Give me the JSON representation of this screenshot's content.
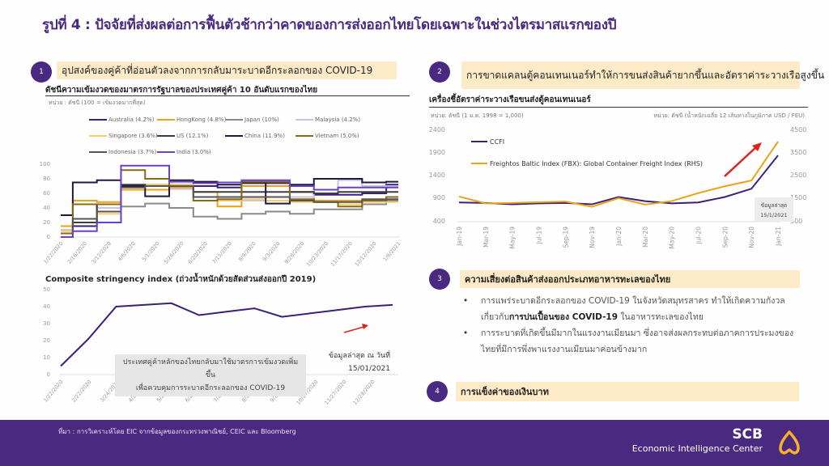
{
  "title": "รูปที่ 4 : ปัจจัยที่ส่งผลต่อการฟื้นตัวช้ากว่าคาดของการส่งออกไทยโดยเฉพาะในช่วงไตรมาสแรกของปี",
  "sections": [
    {
      "number": "1",
      "heading": "อุปสงค์ของคู่ค้าที่อ่อนตัวลงจากการกลับมาระบาดอีกระลอกของ   COVID-19"
    },
    {
      "number": "2",
      "heading": "การขาดแคลนตู้คอนเทนเนอร์ทำให้การขนส่งสินค้ายากขึ้นและอัตราค่าระวางเรือสูงขึ้น"
    },
    {
      "number": "3",
      "heading": "ความเสี่ยงต่อสินค้าส่งออกประเภทอาหารทะเลของไทย"
    },
    {
      "number": "4",
      "heading": "การแข็งค่าของเงินบาท"
    }
  ],
  "chart1": {
    "subtitle": "ดัชนีความเข้มงวดของมาตรการรัฐบาลของประเทศคู่ค้า 10 อันดับแรกของไทย",
    "unit": "หน่วย : ดัชนี (100 = เข้มงวดมากที่สุด)"
  },
  "chart2": {
    "subtitle": "Composite stringency index (ถ่วงน้ำหนักด้วยสัดส่วนส่งออกปี 2019)",
    "callout_line1": "ประเทศคู่ค้าหลักของไทยกลับมาใช้มาตรการเข้มงวดเพิ่มขึ้น",
    "callout_line2": "เพื่อควบคุมการระบาดอีกระลอกของ COVID-19",
    "note_line1": "ข้อมูลล่าสุด ณ วันที่",
    "note_line2": "15/01/2021"
  },
  "chart3": {
    "subtitle": "เครื่องชี้อัตราค่าระวางเรือขนส่งตู้คอนเทนเนอร์",
    "unit_left": "หน่วย: ดัชนี (1 ม.ค. 1998 = 1,000)",
    "unit_right": "หน่วย: ดัชนี (น้ำหนักเฉลี่ย 12 เส้นทางในภูมิภาค USD / FEU)",
    "note_line1": "ข้อมูลล่าสุด",
    "note_line2": "15/1/2021"
  },
  "bullets": [
    {
      "pre": "การแพร่ระบาดอีกระลอกของ  COVID-19 ในจังหวัดสมุทรสาคร ทำให้เกิดความกังวลเกี่ยวกับ",
      "bold": "การปนเปื้อนของ   COVID-19",
      "post": " ในอาหารทะเลของไทย"
    },
    {
      "pre": "การระบาดที่เกิดขึ้นมีมากในแรงงานเมียนมา ซึ่งอาจส่งผลกระทบต่อภาคการประมงของไทยที่มีการพึ่งพาแรงงานเมียนมาค่อนข้างมาก",
      "bold": "",
      "post": ""
    }
  ],
  "footer": {
    "source": "ที่มา : การวิเคราะห์โดย EIC จากข้อมูลของกระทรวงพาณิชย์, CEIC และ Bloomberg",
    "brand": "SCB",
    "brand_sub": "Economic Intelligence Center"
  },
  "chart_data": [
    {
      "type": "line",
      "title": "ดัชนีความเข้มงวดของมาตรการรัฐบาลของประเทศคู่ค้า 10 อันดับแรกของไทย",
      "ylabel": "หน่วย : ดัชนี (100 = เข้มงวดมากที่สุด)",
      "ylim": [
        0,
        100
      ],
      "yticks": [
        0,
        20,
        40,
        60,
        80,
        100
      ],
      "x": [
        "1/22/2020",
        "2/16/2020",
        "3/12/2020",
        "4/6/2020",
        "5/1/2020",
        "5/26/2020",
        "6/20/2020",
        "7/15/2020",
        "8/9/2020",
        "9/3/2020",
        "9/28/2020",
        "10/23/2020",
        "11/17/2020",
        "12/12/2020",
        "1/6/2021"
      ],
      "legend_position": "top",
      "series": [
        {
          "name": "Australia (4.2%)",
          "color": "#3b1f7a",
          "values": [
            5,
            15,
            45,
            70,
            72,
            72,
            70,
            68,
            74,
            74,
            62,
            58,
            58,
            60,
            72
          ]
        },
        {
          "name": "HongKong (4.8%)",
          "color": "#e8a317",
          "values": [
            15,
            50,
            48,
            65,
            65,
            68,
            62,
            42,
            70,
            70,
            55,
            50,
            50,
            50,
            55
          ]
        },
        {
          "name": "Japan (10%)",
          "color": "#8a8a8a",
          "values": [
            5,
            20,
            35,
            42,
            46,
            40,
            28,
            25,
            32,
            35,
            32,
            38,
            38,
            45,
            50
          ]
        },
        {
          "name": "Malaysia (4.2%)",
          "color": "#c9c3e0",
          "values": [
            10,
            20,
            40,
            70,
            72,
            66,
            55,
            50,
            50,
            55,
            55,
            60,
            78,
            70,
            70
          ]
        },
        {
          "name": "Singapore (3.6%)",
          "color": "#f2d06b",
          "values": [
            8,
            25,
            32,
            70,
            72,
            72,
            55,
            50,
            52,
            50,
            48,
            48,
            45,
            48,
            48
          ]
        },
        {
          "name": "US (12.1%)",
          "color": "#3d3d3d",
          "values": [
            5,
            20,
            45,
            72,
            70,
            70,
            62,
            62,
            62,
            62,
            62,
            60,
            62,
            62,
            62
          ]
        },
        {
          "name": "China (11.9%)",
          "color": "#1f1a3d",
          "values": [
            30,
            75,
            78,
            70,
            56,
            78,
            76,
            72,
            75,
            46,
            72,
            80,
            80,
            75,
            76
          ]
        },
        {
          "name": "Vietnam (5.0%)",
          "color": "#8a6a1a",
          "values": [
            5,
            45,
            45,
            92,
            80,
            70,
            50,
            52,
            76,
            76,
            52,
            48,
            42,
            50,
            55
          ]
        },
        {
          "name": "Indonesia (3.7%)",
          "color": "#555555",
          "values": [
            0,
            25,
            35,
            68,
            70,
            70,
            55,
            55,
            55,
            55,
            50,
            48,
            48,
            52,
            52
          ]
        },
        {
          "name": "India (3.0%)",
          "color": "#6a3fc9",
          "values": [
            0,
            8,
            20,
            98,
            98,
            76,
            74,
            75,
            78,
            78,
            70,
            65,
            68,
            68,
            68
          ]
        }
      ]
    },
    {
      "type": "line",
      "title": "Composite stringency index (ถ่วงน้ำหนักด้วยสัดส่วนส่งออกปี 2019)",
      "ylim": [
        0,
        50
      ],
      "yticks": [
        0,
        10,
        20,
        30,
        40,
        50
      ],
      "x": [
        "1/22/2020",
        "2/22/2020",
        "3/24/2020",
        "4/24/2020",
        "5/25/2020",
        "6/25/2020",
        "7/26/2020",
        "8/26/2020",
        "9/26/2020",
        "10/27/2020",
        "11/27/2020",
        "12/28/2020",
        "1/15/2021"
      ],
      "series": [
        {
          "name": "Composite stringency index",
          "color": "#3b1f7a",
          "values": [
            5,
            21,
            40,
            41,
            42,
            35,
            37,
            39,
            34,
            36,
            38,
            40,
            41
          ]
        }
      ],
      "annotations": [
        "ประเทศคู่ค้าหลักของไทยกลับมาใช้มาตรการเข้มงวดเพิ่มขึ้น เพื่อควบคุมการระบาดอีกระลอกของ COVID-19",
        "ข้อมูลล่าสุด ณ วันที่ 15/01/2021"
      ]
    },
    {
      "type": "line",
      "title": "เครื่องชี้อัตราค่าระวางเรือขนส่งตู้คอนเทนเนอร์",
      "x": [
        "Jan-19",
        "Mar-19",
        "May-19",
        "Jul-19",
        "Sep-19",
        "Nov-19",
        "Jan-20",
        "Mar-20",
        "May-20",
        "Jul-20",
        "Sep-20",
        "Nov-20",
        "Jan-21"
      ],
      "ylim_left": [
        400,
        2400
      ],
      "yticks_left": [
        400,
        900,
        1400,
        1900,
        2400
      ],
      "ylim_right": [
        500,
        4500
      ],
      "yticks_right": [
        500,
        1500,
        2500,
        3500,
        4500
      ],
      "legend_position": "upper left",
      "series": [
        {
          "name": "CCFI",
          "axis": "left",
          "color": "#3b1f7a",
          "values": [
            820,
            810,
            780,
            800,
            810,
            780,
            940,
            850,
            800,
            820,
            940,
            1120,
            1850
          ]
        },
        {
          "name": "Freightos Baltic Index (FBX): Global Container Freight Index (RHS)",
          "axis": "right",
          "color": "#e8a317",
          "values": [
            1600,
            1300,
            1320,
            1350,
            1380,
            1150,
            1530,
            1250,
            1400,
            1750,
            2050,
            2300,
            4000
          ]
        }
      ],
      "annotations": [
        "ข้อมูลล่าสุด 15/1/2021"
      ]
    }
  ]
}
